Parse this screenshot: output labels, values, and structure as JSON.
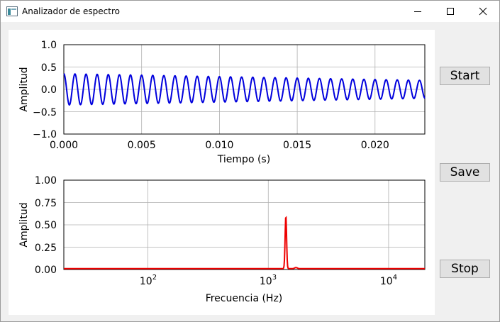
{
  "window": {
    "title": "Analizador de espectro",
    "icon": "app-window-icon",
    "controls": [
      "minimize-icon",
      "maximize-icon",
      "close-icon"
    ]
  },
  "buttons": {
    "start": "Start",
    "save": "Save",
    "stop": "Stop"
  },
  "chart_data": [
    {
      "type": "line",
      "xlabel": "Tiempo (s)",
      "ylabel": "Amplitud",
      "xlim": [
        0,
        0.0232
      ],
      "ylim": [
        -1.0,
        1.0
      ],
      "xticks": [
        "0.000",
        "0.005",
        "0.010",
        "0.015",
        "0.020"
      ],
      "yticks": [
        "1.0",
        "0.5",
        "0.0",
        "−0.5",
        "−1.0"
      ],
      "grid": true,
      "color": "#0000dd",
      "series": [
        {
          "frequency_hz": 1400,
          "amplitude_start": 0.35,
          "amplitude_end": 0.2
        }
      ]
    },
    {
      "type": "line",
      "xlabel": "Frecuencia (Hz)",
      "ylabel": "Amplitud",
      "xscale": "log",
      "xlim": [
        20,
        20000
      ],
      "ylim": [
        0.0,
        1.0
      ],
      "xticks": [
        "10",
        "10",
        "10"
      ],
      "xtick_exponents": [
        "2",
        "3",
        "4"
      ],
      "yticks": [
        "1.00",
        "0.75",
        "0.50",
        "0.25",
        "0.00"
      ],
      "grid": true,
      "color": "#ee0000",
      "series": [
        {
          "peak_frequency_hz": 1400,
          "peak_amplitude": 0.59,
          "baseline": 0.01
        }
      ]
    }
  ]
}
